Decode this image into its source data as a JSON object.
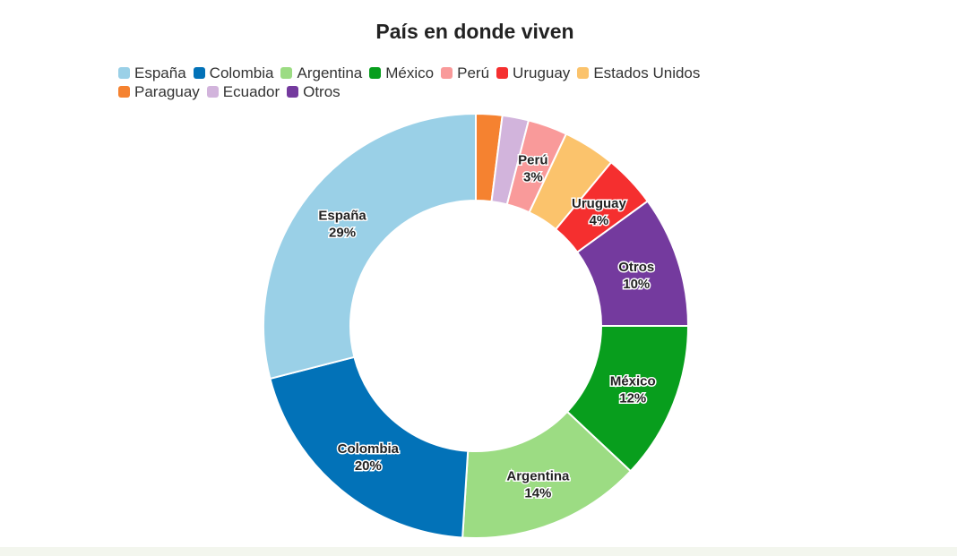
{
  "chart_data": {
    "type": "pie",
    "donut": true,
    "title": "País en donde viven",
    "legend_position": "top-left",
    "slices": [
      {
        "name": "Paraguay",
        "value": 2,
        "color": "#f58230",
        "label": ""
      },
      {
        "name": "Ecuador",
        "value": 2,
        "color": "#d2b4dc",
        "label": ""
      },
      {
        "name": "Perú",
        "value": 3,
        "color": "#f99a9a",
        "label": "3%"
      },
      {
        "name": "Estados Unidos",
        "value": 4,
        "color": "#fbc36c",
        "label": ""
      },
      {
        "name": "Uruguay",
        "value": 4,
        "color": "#f52f2f",
        "label": "4%"
      },
      {
        "name": "Otros",
        "value": 10,
        "color": "#743a9e",
        "label": "10%"
      },
      {
        "name": "México",
        "value": 12,
        "color": "#089e1d",
        "label": "12%"
      },
      {
        "name": "Argentina",
        "value": 14,
        "color": "#9cdc83",
        "label": "14%"
      },
      {
        "name": "Colombia",
        "value": 20,
        "color": "#0272b8",
        "label": "20%"
      },
      {
        "name": "España",
        "value": 29,
        "color": "#9ad0e7",
        "label": "29%"
      }
    ],
    "legend": [
      "España",
      "Colombia",
      "Argentina",
      "México",
      "Perú",
      "Uruguay",
      "Estados Unidos",
      "Paraguay",
      "Ecuador",
      "Otros"
    ]
  }
}
